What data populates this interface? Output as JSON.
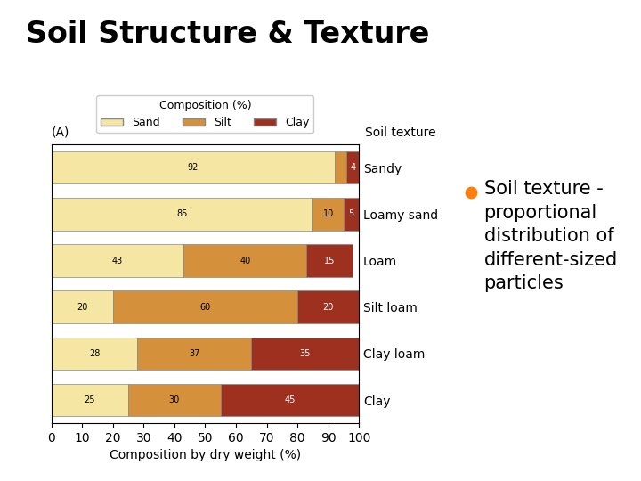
{
  "chart_data": {
    "type": "bar",
    "orientation": "horizontal",
    "stacked": true,
    "title": "Soil Structure & Texture",
    "annotations": [
      "Soil texture -\nproportional\ndistribution of\ndifferent-sized\nparticles",
      "(A)"
    ],
    "xlabel": "Composition by dry weight (%)",
    "ylabel": "Soil texture",
    "legend_title": "Composition (%)",
    "legend": "lower center",
    "categories": [
      "Sandy",
      "Loamy sand",
      "Loam",
      "Silt loam",
      "Clay loam",
      "Clay"
    ],
    "series": [
      {
        "name": "Sand",
        "color": "#f5e6a3",
        "values": [
          92,
          85,
          43,
          20,
          28,
          25
        ]
      },
      {
        "name": "Silt",
        "color": "#d4903a",
        "values": [
          4,
          10,
          40,
          60,
          37,
          30
        ],
        "value_labels": [
          null,
          "10",
          "40",
          "60",
          "37",
          "30"
        ]
      },
      {
        "name": "Clay",
        "color": "#9e3020",
        "values": [
          4,
          5,
          15,
          20,
          35,
          45
        ]
      }
    ],
    "xlim": [
      0,
      100
    ],
    "xticks": [
      0,
      10,
      20,
      30,
      40,
      50,
      60,
      70,
      80,
      90,
      100
    ],
    "data_labels": true,
    "grid": false
  }
}
